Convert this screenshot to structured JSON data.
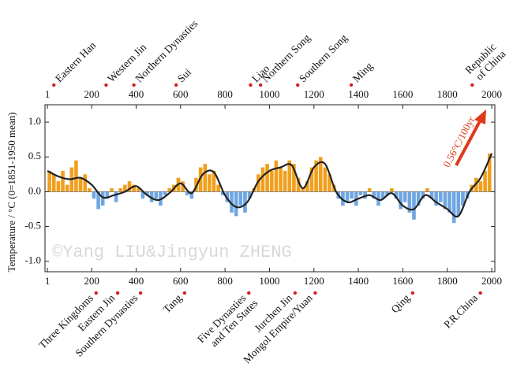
{
  "chart_data": {
    "type": "bar",
    "y_label": "Temperature / °C  (0=1851-1950 mean)",
    "annotation": "0.56°C/100yr",
    "watermark": "©Yang LIU&Jingyun ZHENG",
    "xlim": [
      -10,
      2014
    ],
    "ylim": [
      -1.15,
      1.25
    ],
    "xticks": [
      1,
      200,
      400,
      600,
      800,
      1000,
      1200,
      1400,
      1600,
      1800,
      2000
    ],
    "yticks": [
      {
        "value": -1.0,
        "label": "-1.0"
      },
      {
        "value": -0.5,
        "label": "-0.5"
      },
      {
        "value": 0.0,
        "label": "0.0"
      },
      {
        "value": 0.5,
        "label": "0.5"
      },
      {
        "value": 1.0,
        "label": "1.0"
      }
    ],
    "colors": {
      "positive": "#f0a01e",
      "negative": "#6fa6e2",
      "line": "#222222",
      "dot": "#d42020",
      "arrow": "#e03a1a"
    },
    "x": [
      10,
      30,
      50,
      70,
      90,
      110,
      130,
      150,
      170,
      190,
      210,
      230,
      250,
      270,
      290,
      310,
      330,
      350,
      370,
      390,
      410,
      430,
      450,
      470,
      490,
      510,
      530,
      550,
      570,
      590,
      610,
      630,
      650,
      670,
      690,
      710,
      730,
      750,
      770,
      790,
      810,
      830,
      850,
      870,
      890,
      910,
      930,
      950,
      970,
      990,
      1010,
      1030,
      1050,
      1070,
      1090,
      1110,
      1130,
      1150,
      1170,
      1190,
      1210,
      1230,
      1250,
      1270,
      1290,
      1310,
      1330,
      1350,
      1370,
      1390,
      1410,
      1430,
      1450,
      1470,
      1490,
      1510,
      1530,
      1550,
      1570,
      1590,
      1610,
      1630,
      1650,
      1670,
      1690,
      1710,
      1730,
      1750,
      1770,
      1790,
      1810,
      1830,
      1850,
      1870,
      1890,
      1910,
      1930,
      1950,
      1970,
      1990
    ],
    "values": [
      0.3,
      0.25,
      0.15,
      0.3,
      0.1,
      0.35,
      0.45,
      0.2,
      0.25,
      0.05,
      -0.1,
      -0.25,
      -0.2,
      -0.1,
      0.05,
      -0.15,
      0.05,
      0.1,
      0.15,
      0.1,
      0.05,
      -0.1,
      -0.05,
      -0.15,
      -0.1,
      -0.2,
      -0.05,
      0.05,
      0.1,
      0.2,
      0.15,
      -0.05,
      -0.1,
      0.2,
      0.35,
      0.4,
      0.25,
      0.3,
      0.1,
      -0.05,
      -0.15,
      -0.3,
      -0.35,
      -0.2,
      -0.3,
      -0.1,
      0.05,
      0.25,
      0.35,
      0.4,
      0.3,
      0.45,
      0.35,
      0.3,
      0.45,
      0.4,
      0.2,
      0.05,
      0.15,
      0.35,
      0.45,
      0.5,
      0.35,
      0.25,
      0.1,
      -0.1,
      -0.2,
      -0.15,
      -0.1,
      -0.2,
      -0.05,
      -0.1,
      0.05,
      -0.1,
      -0.2,
      -0.1,
      -0.05,
      0.05,
      -0.1,
      -0.25,
      -0.15,
      -0.3,
      -0.4,
      -0.2,
      -0.1,
      0.05,
      -0.1,
      -0.2,
      -0.15,
      -0.25,
      -0.3,
      -0.45,
      -0.35,
      -0.2,
      -0.1,
      0.1,
      0.2,
      0.15,
      0.3,
      0.55
    ],
    "smooth": {
      "x": [
        1,
        50,
        100,
        150,
        200,
        250,
        300,
        350,
        400,
        450,
        500,
        550,
        600,
        650,
        700,
        750,
        800,
        850,
        900,
        950,
        1000,
        1050,
        1100,
        1150,
        1200,
        1250,
        1300,
        1350,
        1400,
        1450,
        1500,
        1550,
        1600,
        1650,
        1700,
        1750,
        1800,
        1850,
        1900,
        1950,
        2000
      ],
      "values": [
        0.3,
        0.22,
        0.18,
        0.2,
        0.1,
        -0.08,
        -0.05,
        0.0,
        0.08,
        -0.05,
        -0.12,
        -0.02,
        0.12,
        -0.02,
        0.25,
        0.28,
        -0.05,
        -0.22,
        -0.15,
        0.15,
        0.3,
        0.35,
        0.38,
        0.05,
        0.35,
        0.4,
        0.0,
        -0.15,
        -0.1,
        -0.05,
        -0.12,
        -0.02,
        -0.2,
        -0.25,
        -0.05,
        -0.15,
        -0.25,
        -0.35,
        0.0,
        0.2,
        0.55
      ]
    },
    "dynasties_top": [
      {
        "lines": [
          "Eastern Han"
        ],
        "year": 30
      },
      {
        "lines": [
          "Western Jin"
        ],
        "year": 265
      },
      {
        "lines": [
          "Northern Dynasties"
        ],
        "year": 390
      },
      {
        "lines": [
          "Sui"
        ],
        "year": 580
      },
      {
        "lines": [
          "Liao"
        ],
        "year": 915
      },
      {
        "lines": [
          "Northern Song"
        ],
        "year": 960
      },
      {
        "lines": [
          "Southern Song"
        ],
        "year": 1127
      },
      {
        "lines": [
          "Ming"
        ],
        "year": 1368
      },
      {
        "lines": [
          "Republic",
          "of China"
        ],
        "year": 1912
      }
    ],
    "dynasties_bottom": [
      {
        "lines": [
          "Three Kingdoms"
        ],
        "year": 220
      },
      {
        "lines": [
          "Eastern Jin"
        ],
        "year": 317
      },
      {
        "lines": [
          "Southern Dynasties"
        ],
        "year": 420
      },
      {
        "lines": [
          "Tang"
        ],
        "year": 618
      },
      {
        "lines": [
          "Five Dynasties",
          "and Ten States"
        ],
        "year": 907
      },
      {
        "lines": [
          "Jurchen Jin"
        ],
        "year": 1115
      },
      {
        "lines": [
          "Mongol Empire/Yuan"
        ],
        "year": 1206
      },
      {
        "lines": [
          "Qing"
        ],
        "year": 1644
      },
      {
        "lines": [
          "P.R.China"
        ],
        "year": 1949
      }
    ]
  }
}
